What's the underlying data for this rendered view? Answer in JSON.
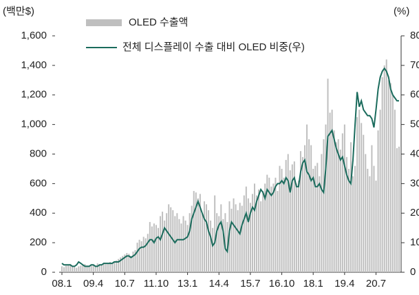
{
  "chart_data": {
    "type": "bar-line",
    "y_label": "(백만$)",
    "y2_label": "(%)",
    "categories": [
      "08.1",
      null,
      null,
      null,
      null,
      null,
      null,
      null,
      null,
      null,
      null,
      null,
      null,
      null,
      null,
      "09.4",
      null,
      null,
      null,
      null,
      null,
      null,
      null,
      null,
      null,
      null,
      null,
      null,
      null,
      null,
      "10.7",
      null,
      null,
      null,
      null,
      null,
      null,
      null,
      null,
      null,
      null,
      null,
      null,
      null,
      null,
      "11.10",
      null,
      null,
      null,
      null,
      null,
      null,
      null,
      null,
      null,
      null,
      null,
      null,
      null,
      null,
      "13.1",
      null,
      null,
      null,
      null,
      null,
      null,
      null,
      null,
      null,
      null,
      null,
      null,
      null,
      null,
      "14.4",
      null,
      null,
      null,
      null,
      null,
      null,
      null,
      null,
      null,
      null,
      null,
      null,
      null,
      null,
      "15.7",
      null,
      null,
      null,
      null,
      null,
      null,
      null,
      null,
      null,
      null,
      null,
      null,
      null,
      null,
      "16.10",
      null,
      null,
      null,
      null,
      null,
      null,
      null,
      null,
      null,
      null,
      null,
      null,
      null,
      null,
      "18.1",
      null,
      null,
      null,
      null,
      null,
      null,
      null,
      null,
      null,
      null,
      null,
      null,
      null,
      null,
      "19.4",
      null,
      null,
      null,
      null,
      null,
      null,
      null,
      null,
      null,
      null,
      null,
      null,
      null,
      null,
      "20.7",
      null,
      null,
      null,
      null,
      null,
      null,
      null,
      null,
      null,
      null,
      null
    ],
    "series": [
      {
        "name": "OLED 수출액",
        "type": "bar",
        "color": "#bfbfbf",
        "values": [
          40,
          35,
          45,
          50,
          55,
          40,
          35,
          30,
          40,
          45,
          50,
          55,
          45,
          40,
          45,
          50,
          45,
          60,
          55,
          50,
          65,
          55,
          60,
          70,
          65,
          75,
          80,
          90,
          100,
          110,
          120,
          130,
          125,
          110,
          140,
          150,
          200,
          220,
          210,
          240,
          230,
          260,
          340,
          310,
          330,
          320,
          300,
          380,
          410,
          350,
          400,
          460,
          440,
          420,
          380,
          400,
          360,
          330,
          380,
          350,
          320,
          400,
          450,
          550,
          540,
          500,
          530,
          400,
          480,
          460,
          420,
          350,
          300,
          520,
          400,
          380,
          460,
          360,
          400,
          340,
          480,
          430,
          500,
          460,
          420,
          470,
          450,
          520,
          580,
          500,
          470,
          530,
          600,
          520,
          560,
          480,
          550,
          600,
          660,
          640,
          580,
          600,
          640,
          550,
          720,
          700,
          640,
          760,
          800,
          690,
          730,
          750,
          600,
          620,
          820,
          780,
          860,
          1000,
          900,
          860,
          700,
          720,
          740,
          650,
          800,
          900,
          1000,
          1310,
          1080,
          1100,
          960,
          880,
          900,
          830,
          940,
          1000,
          780,
          700,
          880,
          650,
          720,
          1050,
          1100,
          1010,
          930,
          800,
          700,
          650,
          860,
          720,
          620,
          960,
          1100,
          1320,
          1400,
          1440,
          1300,
          1280,
          1200,
          1100,
          840,
          850
        ]
      },
      {
        "name": "전체 디스플레이 수출 대비 OLED 비중(우)",
        "type": "line",
        "axis": "y2",
        "color": "#1a6b5c",
        "values": [
          3,
          2.5,
          2.5,
          2.5,
          2.5,
          2,
          2,
          2.5,
          3.5,
          3,
          2.5,
          2,
          2,
          2,
          2.5,
          2.5,
          2,
          2,
          2.5,
          2.5,
          3,
          3,
          3,
          3,
          3,
          3.5,
          3.5,
          3.5,
          4,
          4.5,
          5,
          5.5,
          5.5,
          5,
          5.5,
          6,
          7,
          8,
          8.5,
          8.5,
          9,
          10,
          11,
          11,
          10,
          11.5,
          12,
          11,
          13,
          15,
          14,
          13,
          12,
          11,
          10,
          11,
          11,
          11,
          11,
          11.5,
          12,
          14,
          18,
          20,
          22,
          24,
          22,
          20,
          18,
          17,
          14,
          12,
          9,
          10,
          14,
          16,
          17,
          14,
          8,
          7,
          14,
          17,
          16,
          15,
          14,
          13,
          16,
          18,
          20,
          17,
          20,
          22,
          21,
          24,
          26,
          28,
          27,
          25,
          28,
          27,
          26,
          27,
          29,
          30,
          30,
          31,
          30,
          32,
          31,
          27,
          31,
          32,
          29,
          29,
          34,
          37,
          38,
          34,
          33,
          31,
          32,
          29,
          29,
          30,
          28,
          27,
          35,
          46,
          47,
          48,
          45,
          42,
          40,
          38,
          39,
          36,
          33,
          31,
          30,
          38,
          50,
          61,
          56,
          58,
          55,
          54,
          53,
          53,
          52,
          49,
          55,
          62,
          66,
          68,
          69,
          68,
          66,
          62,
          60,
          59,
          58,
          58
        ]
      }
    ],
    "ylim": [
      0,
      1600
    ],
    "yticks": [
      0,
      200,
      400,
      600,
      800,
      {
        "value": 1000,
        "label": "1,000"
      },
      {
        "value": 1200,
        "label": "1,200"
      },
      {
        "value": 1400,
        "label": "1,400"
      },
      {
        "value": 1600,
        "label": "1,600"
      }
    ],
    "y2lim": [
      0,
      80
    ],
    "y2ticks": [
      0,
      10,
      20,
      30,
      40,
      50,
      60,
      70,
      80
    ]
  }
}
